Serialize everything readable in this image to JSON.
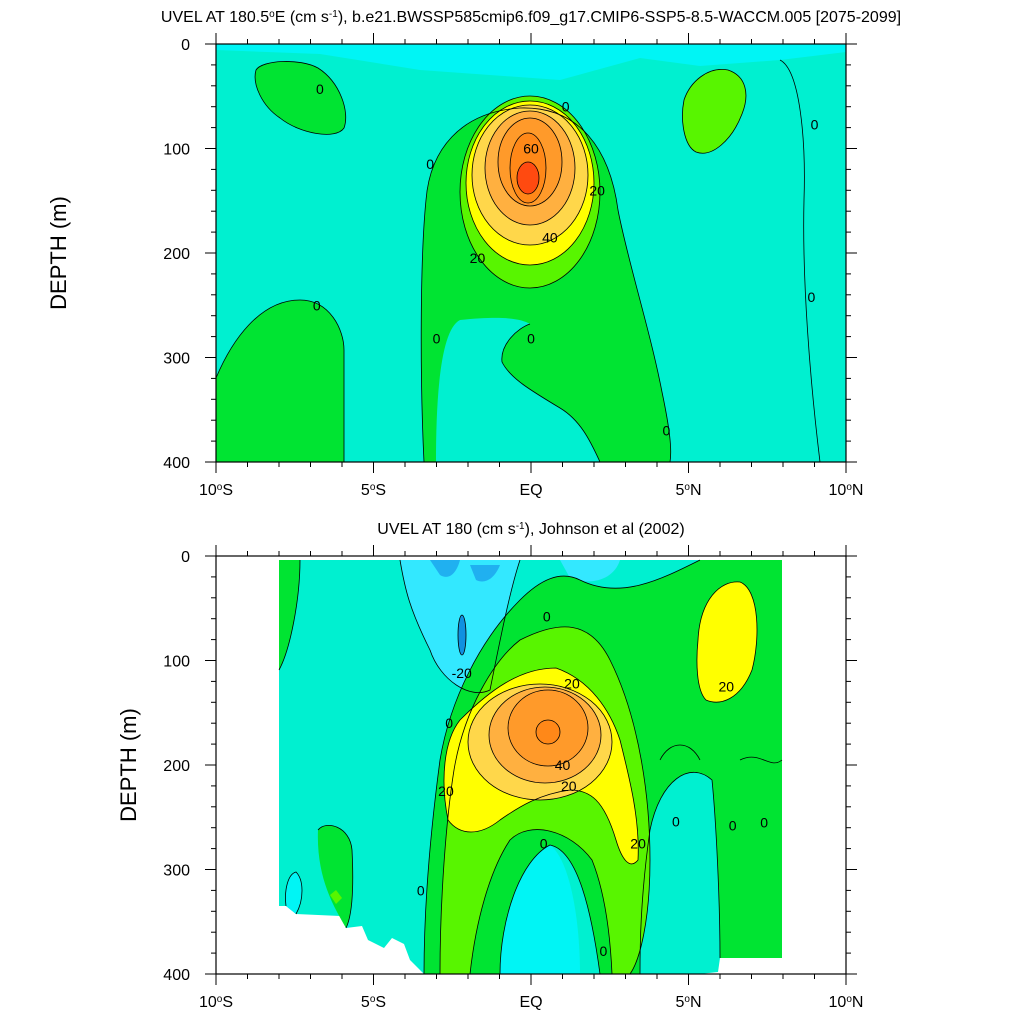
{
  "chart_data": [
    {
      "type": "heatmap",
      "title_pre": "UVEL AT 180.5",
      "title_degree": "o",
      "title_mid": "E (cm s",
      "title_exp": "-1",
      "title_post": "), b.e21.BWSSP585cmip6.f09_g17.CMIP6-SSP5-8.5-WACCM.005 [2075-2099]",
      "ylabel": "DEPTH (m)",
      "xlim": [
        -10,
        10
      ],
      "ylim": [
        0,
        400
      ],
      "x_ticks": [
        {
          "value": -10,
          "main": "10",
          "deg": "o",
          "suffix": "S"
        },
        {
          "value": -5,
          "main": "5",
          "deg": "o",
          "suffix": "S"
        },
        {
          "value": 0,
          "main": "EQ",
          "deg": "",
          "suffix": ""
        },
        {
          "value": 5,
          "main": "5",
          "deg": "o",
          "suffix": "N"
        },
        {
          "value": 10,
          "main": "10",
          "deg": "o",
          "suffix": "N"
        }
      ],
      "y_ticks": [
        {
          "value": 0,
          "label": "0"
        },
        {
          "value": 100,
          "label": "100"
        },
        {
          "value": 200,
          "label": "200"
        },
        {
          "value": 300,
          "label": "300"
        },
        {
          "value": 400,
          "label": "400"
        }
      ],
      "contour_interval": 10,
      "peak_value": 70,
      "peak_location": {
        "lat": 0,
        "depth": 125
      },
      "contour_labels": [
        {
          "text": "0",
          "lat": -6.7,
          "depth": 43
        },
        {
          "text": "0",
          "lat": 1.1,
          "depth": 60
        },
        {
          "text": "0",
          "lat": 9.0,
          "depth": 77
        },
        {
          "text": "0",
          "lat": -3.2,
          "depth": 115
        },
        {
          "text": "60",
          "lat": 0.0,
          "depth": 100
        },
        {
          "text": "20",
          "lat": 2.1,
          "depth": 140
        },
        {
          "text": "40",
          "lat": 0.6,
          "depth": 185
        },
        {
          "text": "20",
          "lat": -1.7,
          "depth": 205
        },
        {
          "text": "0",
          "lat": -6.8,
          "depth": 250
        },
        {
          "text": "0",
          "lat": 8.9,
          "depth": 242
        },
        {
          "text": "0",
          "lat": -3.0,
          "depth": 282
        },
        {
          "text": "0",
          "lat": 0.0,
          "depth": 282
        },
        {
          "text": "0",
          "lat": 4.3,
          "depth": 370
        }
      ]
    },
    {
      "type": "heatmap",
      "title_pre": "UVEL AT 180 (cm s",
      "title_exp": "-1",
      "title_post": "), Johnson et al (2002)",
      "ylabel": "DEPTH (m)",
      "xlim": [
        -10,
        10
      ],
      "ylim": [
        0,
        400
      ],
      "x_ticks": [
        {
          "value": -10,
          "main": "10",
          "deg": "o",
          "suffix": "S"
        },
        {
          "value": -5,
          "main": "5",
          "deg": "o",
          "suffix": "S"
        },
        {
          "value": 0,
          "main": "EQ",
          "deg": "",
          "suffix": ""
        },
        {
          "value": 5,
          "main": "5",
          "deg": "o",
          "suffix": "N"
        },
        {
          "value": 10,
          "main": "10",
          "deg": "o",
          "suffix": "N"
        }
      ],
      "y_ticks": [
        {
          "value": 0,
          "label": "0"
        },
        {
          "value": 100,
          "label": "100"
        },
        {
          "value": 200,
          "label": "200"
        },
        {
          "value": 300,
          "label": "300"
        },
        {
          "value": 400,
          "label": "400"
        }
      ],
      "contour_interval": 10,
      "data_lat_range": [
        -8,
        8
      ],
      "peak_value": 60,
      "peak_location": {
        "lat": 0.5,
        "depth": 170
      },
      "contour_labels": [
        {
          "text": "0",
          "lat": 0.5,
          "depth": 58
        },
        {
          "text": "-20",
          "lat": -2.2,
          "depth": 112
        },
        {
          "text": "20",
          "lat": 1.3,
          "depth": 122
        },
        {
          "text": "20",
          "lat": 6.2,
          "depth": 125
        },
        {
          "text": "0",
          "lat": -2.6,
          "depth": 160
        },
        {
          "text": "40",
          "lat": 1.0,
          "depth": 200
        },
        {
          "text": "20",
          "lat": 1.2,
          "depth": 220
        },
        {
          "text": "20",
          "lat": -2.7,
          "depth": 225
        },
        {
          "text": "0",
          "lat": 4.6,
          "depth": 254
        },
        {
          "text": "0",
          "lat": 7.4,
          "depth": 255
        },
        {
          "text": "0",
          "lat": 6.4,
          "depth": 258
        },
        {
          "text": "0",
          "lat": 0.4,
          "depth": 275
        },
        {
          "text": "20",
          "lat": 3.4,
          "depth": 275
        },
        {
          "text": "0",
          "lat": -3.5,
          "depth": 320
        },
        {
          "text": "0",
          "lat": 2.3,
          "depth": 378
        }
      ]
    }
  ]
}
